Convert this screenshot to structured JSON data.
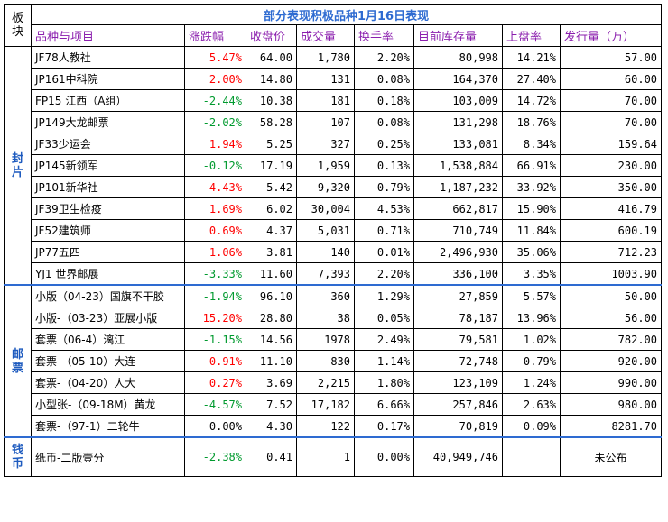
{
  "title": "部分表现积极品种1月16日表现",
  "corner": [
    "板",
    "块"
  ],
  "headers": [
    "品种与项目",
    "涨跌幅",
    "收盘价",
    "成交量",
    "换手率",
    "目前库存量",
    "上盘率",
    "发行量（万）"
  ],
  "sections": [
    {
      "name": [
        "封",
        "片"
      ],
      "rows": [
        {
          "name": "JF78人教社",
          "change": "5.47%",
          "dir": "pos",
          "close": "64.00",
          "volume": "1,780",
          "turnover": "2.20%",
          "stock": "80,998",
          "upRate": "14.21%",
          "issue": "57.00"
        },
        {
          "name": "JP161中科院",
          "change": "2.00%",
          "dir": "pos",
          "close": "14.80",
          "volume": "131",
          "turnover": "0.08%",
          "stock": "164,370",
          "upRate": "27.40%",
          "issue": "60.00"
        },
        {
          "name": "FP15 江西（A组）",
          "change": "-2.44%",
          "dir": "neg",
          "close": "10.38",
          "volume": "181",
          "turnover": "0.18%",
          "stock": "103,009",
          "upRate": "14.72%",
          "issue": "70.00"
        },
        {
          "name": "JP149大龙邮票",
          "change": "-2.02%",
          "dir": "neg",
          "close": "58.28",
          "volume": "107",
          "turnover": "0.08%",
          "stock": "131,298",
          "upRate": "18.76%",
          "issue": "70.00"
        },
        {
          "name": "JF33少运会",
          "change": "1.94%",
          "dir": "pos",
          "close": "5.25",
          "volume": "327",
          "turnover": "0.25%",
          "stock": "133,081",
          "upRate": "8.34%",
          "issue": "159.64"
        },
        {
          "name": "JP145新领军",
          "change": "-0.12%",
          "dir": "neg",
          "close": "17.19",
          "volume": "1,959",
          "turnover": "0.13%",
          "stock": "1,538,884",
          "upRate": "66.91%",
          "issue": "230.00"
        },
        {
          "name": "JP101新华社",
          "change": "4.43%",
          "dir": "pos",
          "close": "5.42",
          "volume": "9,320",
          "turnover": "0.79%",
          "stock": "1,187,232",
          "upRate": "33.92%",
          "issue": "350.00"
        },
        {
          "name": "JF39卫生检疫",
          "change": "1.69%",
          "dir": "pos",
          "close": "6.02",
          "volume": "30,004",
          "turnover": "4.53%",
          "stock": "662,817",
          "upRate": "15.90%",
          "issue": "416.79"
        },
        {
          "name": "JF52建筑师",
          "change": "0.69%",
          "dir": "pos",
          "close": "4.37",
          "volume": "5,031",
          "turnover": "0.71%",
          "stock": "710,749",
          "upRate": "11.84%",
          "issue": "600.19"
        },
        {
          "name": "JP77五四",
          "change": "1.06%",
          "dir": "pos",
          "close": "3.81",
          "volume": "140",
          "turnover": "0.01%",
          "stock": "2,496,930",
          "upRate": "35.06%",
          "issue": "712.23"
        },
        {
          "name": "YJ1 世界邮展",
          "change": "-3.33%",
          "dir": "neg",
          "close": "11.60",
          "volume": "7,393",
          "turnover": "2.20%",
          "stock": "336,100",
          "upRate": "3.35%",
          "issue": "1003.90"
        }
      ]
    },
    {
      "name": [
        "邮",
        "票"
      ],
      "rows": [
        {
          "name": "小版（04-23）国旗不干胶",
          "change": "-1.94%",
          "dir": "neg",
          "close": "96.10",
          "volume": "360",
          "turnover": "1.29%",
          "stock": "27,859",
          "upRate": "5.57%",
          "issue": "50.00"
        },
        {
          "name": "小版-（03-23）亚展小版",
          "change": "15.20%",
          "dir": "pos",
          "close": "28.80",
          "volume": "38",
          "turnover": "0.05%",
          "stock": "78,187",
          "upRate": "13.96%",
          "issue": "56.00"
        },
        {
          "name": "套票（06-4）漓江",
          "change": "-1.15%",
          "dir": "neg",
          "close": "14.56",
          "volume": "1978",
          "turnover": "2.49%",
          "stock": "79,581",
          "upRate": "1.02%",
          "issue": "782.00"
        },
        {
          "name": "套票-（05-10）大连",
          "change": "0.91%",
          "dir": "pos",
          "close": "11.10",
          "volume": "830",
          "turnover": "1.14%",
          "stock": "72,748",
          "upRate": "0.79%",
          "issue": "920.00"
        },
        {
          "name": "套票-（04-20）人大",
          "change": "0.27%",
          "dir": "pos",
          "close": "3.69",
          "volume": "2,215",
          "turnover": "1.80%",
          "stock": "123,109",
          "upRate": "1.24%",
          "issue": "990.00"
        },
        {
          "name": "小型张-（09-18M）黄龙",
          "change": "-4.57%",
          "dir": "neg",
          "close": "7.52",
          "volume": "17,182",
          "turnover": "6.66%",
          "stock": "257,846",
          "upRate": "2.63%",
          "issue": "980.00"
        },
        {
          "name": "套票-（97-1）二轮牛",
          "change": "0.00%",
          "dir": "zero",
          "close": "4.30",
          "volume": "122",
          "turnover": "0.17%",
          "stock": "70,819",
          "upRate": "0.09%",
          "issue": "8281.70"
        }
      ]
    },
    {
      "name": [
        "钱",
        "币"
      ],
      "rows": [
        {
          "name": "纸币-二版壹分",
          "change": "-2.38%",
          "dir": "neg",
          "close": "0.41",
          "volume": "1",
          "turnover": "0.00%",
          "stock": "40,949,746",
          "upRate": "",
          "issue": "未公布"
        }
      ]
    }
  ]
}
